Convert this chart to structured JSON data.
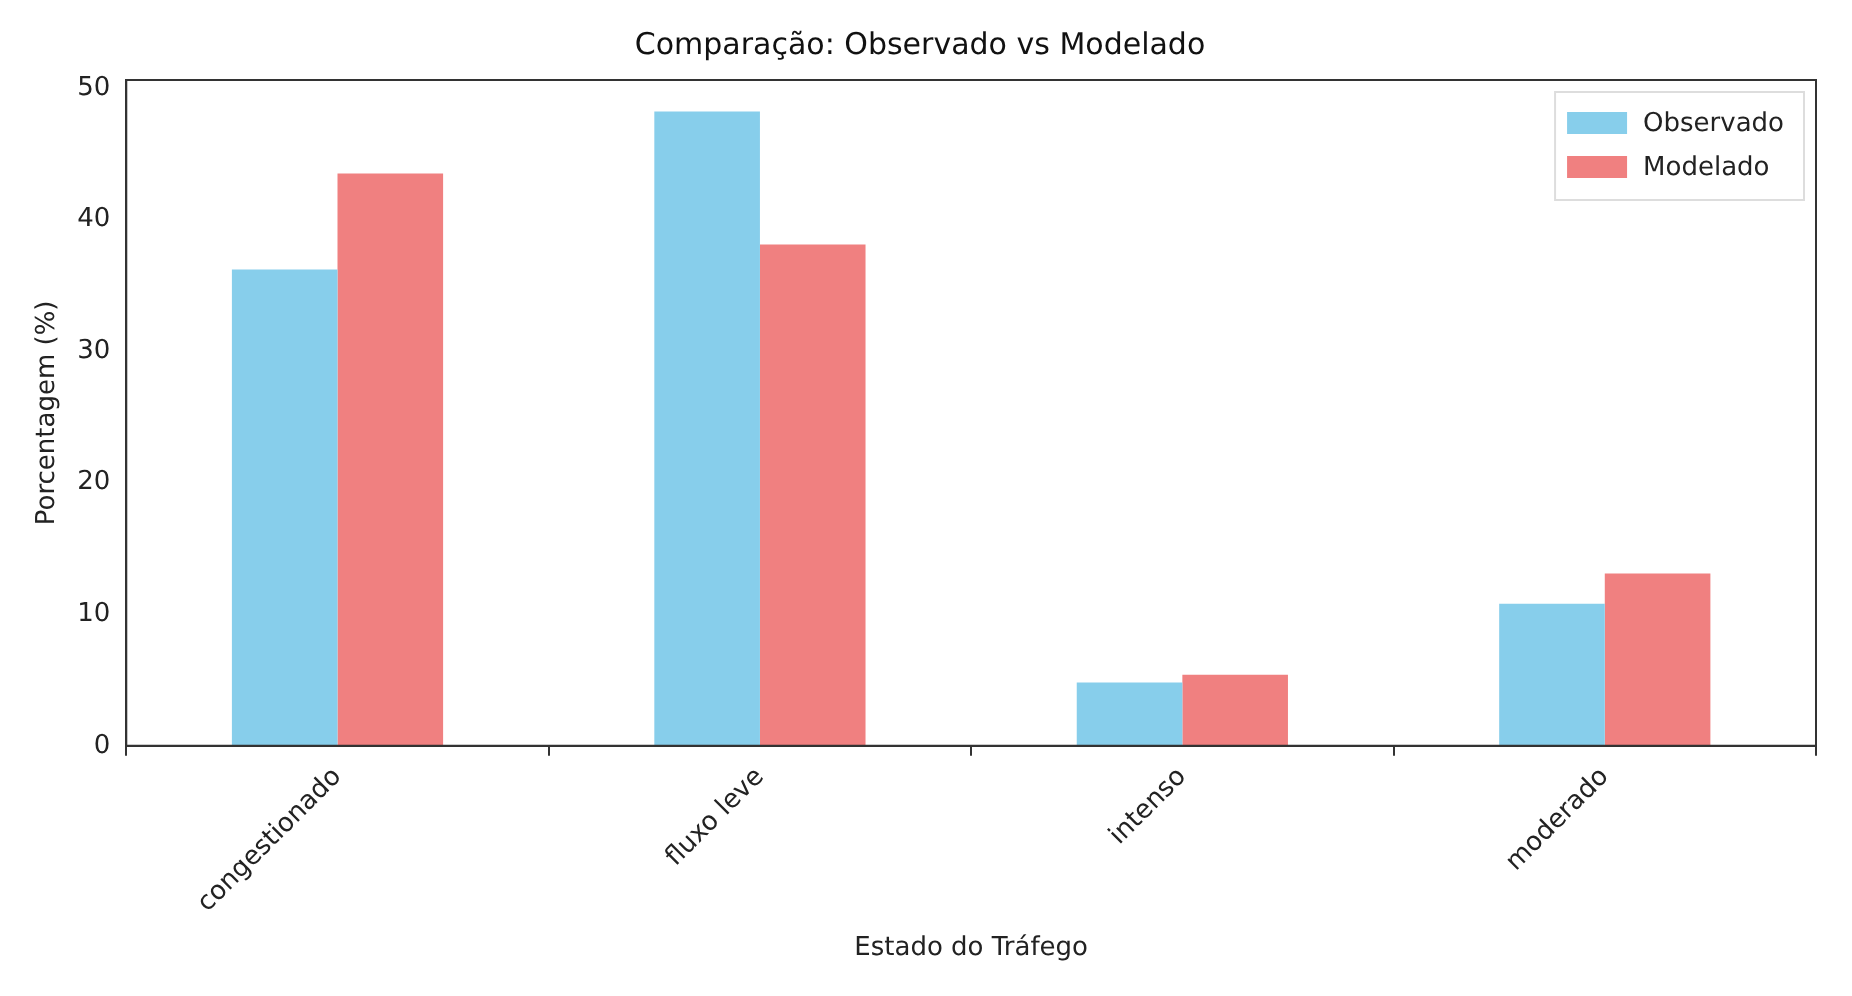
{
  "chart_data": {
    "type": "bar",
    "title": "Comparação: Observado vs Modelado",
    "xlabel": "Estado do Tráfego",
    "ylabel": "Porcentagem (%)",
    "categories": [
      "congestionado",
      "fluxo leve",
      "intenso",
      "moderado"
    ],
    "series": [
      {
        "name": "Observado",
        "color": "#87ceeb",
        "values": [
          36.2,
          48.2,
          4.8,
          10.8
        ]
      },
      {
        "name": "Modelado",
        "color": "#f08080",
        "values": [
          43.5,
          38.1,
          5.4,
          13.1
        ]
      }
    ],
    "ylim": [
      0,
      50.6
    ],
    "yticks": [
      0,
      10,
      20,
      30,
      40,
      50
    ],
    "legend": "top right"
  }
}
